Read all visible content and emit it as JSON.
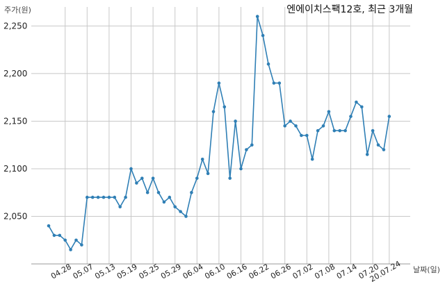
{
  "chart_data": {
    "type": "line",
    "title": "엔에이치스팩12호, 최근 3개월",
    "ylabel": "주가(원)",
    "xlabel": "날짜(일)",
    "grid": true,
    "ylim": [
      2000,
      2270
    ],
    "yticks": [
      "2,050",
      "2,100",
      "2,150",
      "2,200",
      "2,250"
    ],
    "ytick_values": [
      2050,
      2100,
      2150,
      2200,
      2250
    ],
    "xticks": [
      "04.28",
      "05.07",
      "05.13",
      "05.19",
      "05.25",
      "05.29",
      "06.04",
      "06.10",
      "06.16",
      "06.22",
      "06.26",
      "07.02",
      "07.08",
      "07.14",
      "07.20",
      "20.07.24"
    ],
    "series": [
      {
        "color": "#2f7fb5",
        "values": [
          2040,
          2030,
          2030,
          2025,
          2015,
          2025,
          2020,
          2070,
          2070,
          2070,
          2070,
          2070,
          2070,
          2060,
          2070,
          2100,
          2085,
          2090,
          2075,
          2090,
          2075,
          2065,
          2070,
          2060,
          2055,
          2050,
          2075,
          2090,
          2110,
          2095,
          2160,
          2190,
          2165,
          2090,
          2150,
          2100,
          2120,
          2125,
          2260,
          2240,
          2210,
          2190,
          2190,
          2145,
          2150,
          2145,
          2135,
          2135,
          2110,
          2140,
          2145,
          2160,
          2140,
          2140,
          2140,
          2155,
          2170,
          2165,
          2115,
          2140,
          2125,
          2120,
          2155
        ]
      }
    ]
  }
}
